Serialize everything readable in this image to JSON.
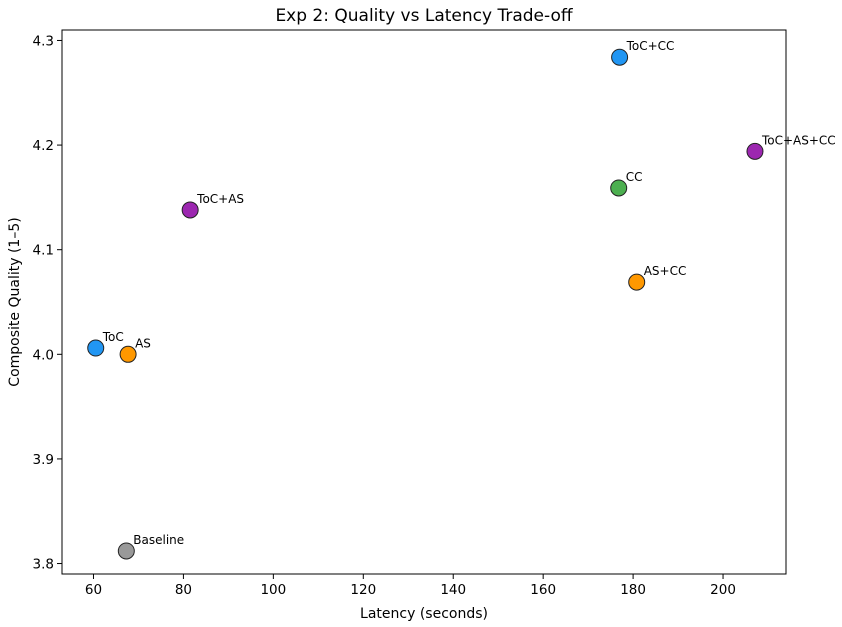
{
  "chart_data": {
    "type": "scatter",
    "title": "Exp 2: Quality vs Latency Trade-off",
    "xlabel": "Latency (seconds)",
    "ylabel": "Composite Quality (1–5)",
    "xlim": [
      53,
      214
    ],
    "ylim": [
      3.79,
      4.31
    ],
    "xticks": [
      60,
      80,
      100,
      120,
      140,
      160,
      180,
      200
    ],
    "yticks": [
      3.8,
      3.9,
      4.0,
      4.1,
      4.2,
      4.3
    ],
    "xtick_labels": [
      "60",
      "80",
      "100",
      "120",
      "140",
      "160",
      "180",
      "200"
    ],
    "ytick_labels": [
      "3.8",
      "3.9",
      "4.0",
      "4.1",
      "4.2",
      "4.3"
    ],
    "grid": false,
    "points": [
      {
        "label": "Baseline",
        "x": 67.3,
        "y": 3.812,
        "color": "#999999"
      },
      {
        "label": "ToC",
        "x": 60.5,
        "y": 4.006,
        "color": "#2196F3"
      },
      {
        "label": "AS",
        "x": 67.7,
        "y": 4.0,
        "color": "#FF9800"
      },
      {
        "label": "ToC+AS",
        "x": 81.5,
        "y": 4.138,
        "color": "#9C27B0"
      },
      {
        "label": "CC",
        "x": 176.8,
        "y": 4.159,
        "color": "#4CAF50"
      },
      {
        "label": "AS+CC",
        "x": 180.8,
        "y": 4.069,
        "color": "#FF9800"
      },
      {
        "label": "ToC+CC",
        "x": 177.0,
        "y": 4.284,
        "color": "#2196F3"
      },
      {
        "label": "ToC+AS+CC",
        "x": 207.1,
        "y": 4.194,
        "color": "#9C27B0"
      }
    ]
  }
}
